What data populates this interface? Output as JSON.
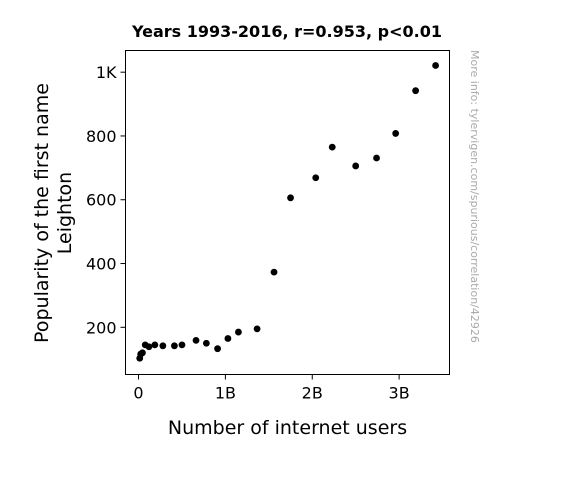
{
  "chart_data": {
    "type": "scatter",
    "title": "Years 1993-2016, r=0.953, p<0.01",
    "xlabel": "Number of internet users",
    "ylabel_lines": [
      "Popularity of the first name",
      "Leighton"
    ],
    "watermark": "More info: tylervigen.com/spurious/correlation/42926",
    "xlim": [
      -150000000,
      3580000000
    ],
    "ylim": [
      52,
      1068
    ],
    "x_ticks": [
      {
        "value": 0,
        "label": "0"
      },
      {
        "value": 1000000000,
        "label": "1B"
      },
      {
        "value": 2000000000,
        "label": "2B"
      },
      {
        "value": 3000000000,
        "label": "3B"
      }
    ],
    "y_ticks": [
      {
        "value": 200,
        "label": "200"
      },
      {
        "value": 400,
        "label": "400"
      },
      {
        "value": 600,
        "label": "600"
      },
      {
        "value": 800,
        "label": "800"
      },
      {
        "value": 1000,
        "label": "1K"
      }
    ],
    "grid": false,
    "point_color": "#000000",
    "points": [
      {
        "x": 14000000,
        "y": 103
      },
      {
        "x": 25000000,
        "y": 116
      },
      {
        "x": 45000000,
        "y": 120
      },
      {
        "x": 77000000,
        "y": 145
      },
      {
        "x": 120000000,
        "y": 139
      },
      {
        "x": 188000000,
        "y": 145
      },
      {
        "x": 280000000,
        "y": 142
      },
      {
        "x": 413000000,
        "y": 142
      },
      {
        "x": 500000000,
        "y": 145
      },
      {
        "x": 662000000,
        "y": 159
      },
      {
        "x": 781000000,
        "y": 150
      },
      {
        "x": 910000000,
        "y": 133
      },
      {
        "x": 1029000000,
        "y": 165
      },
      {
        "x": 1150000000,
        "y": 185
      },
      {
        "x": 1365000000,
        "y": 195
      },
      {
        "x": 1560000000,
        "y": 373
      },
      {
        "x": 1750000000,
        "y": 606
      },
      {
        "x": 2040000000,
        "y": 669
      },
      {
        "x": 2230000000,
        "y": 765
      },
      {
        "x": 2500000000,
        "y": 706
      },
      {
        "x": 2740000000,
        "y": 731
      },
      {
        "x": 2960000000,
        "y": 808
      },
      {
        "x": 3190000000,
        "y": 942
      },
      {
        "x": 3420000000,
        "y": 1021
      }
    ]
  }
}
